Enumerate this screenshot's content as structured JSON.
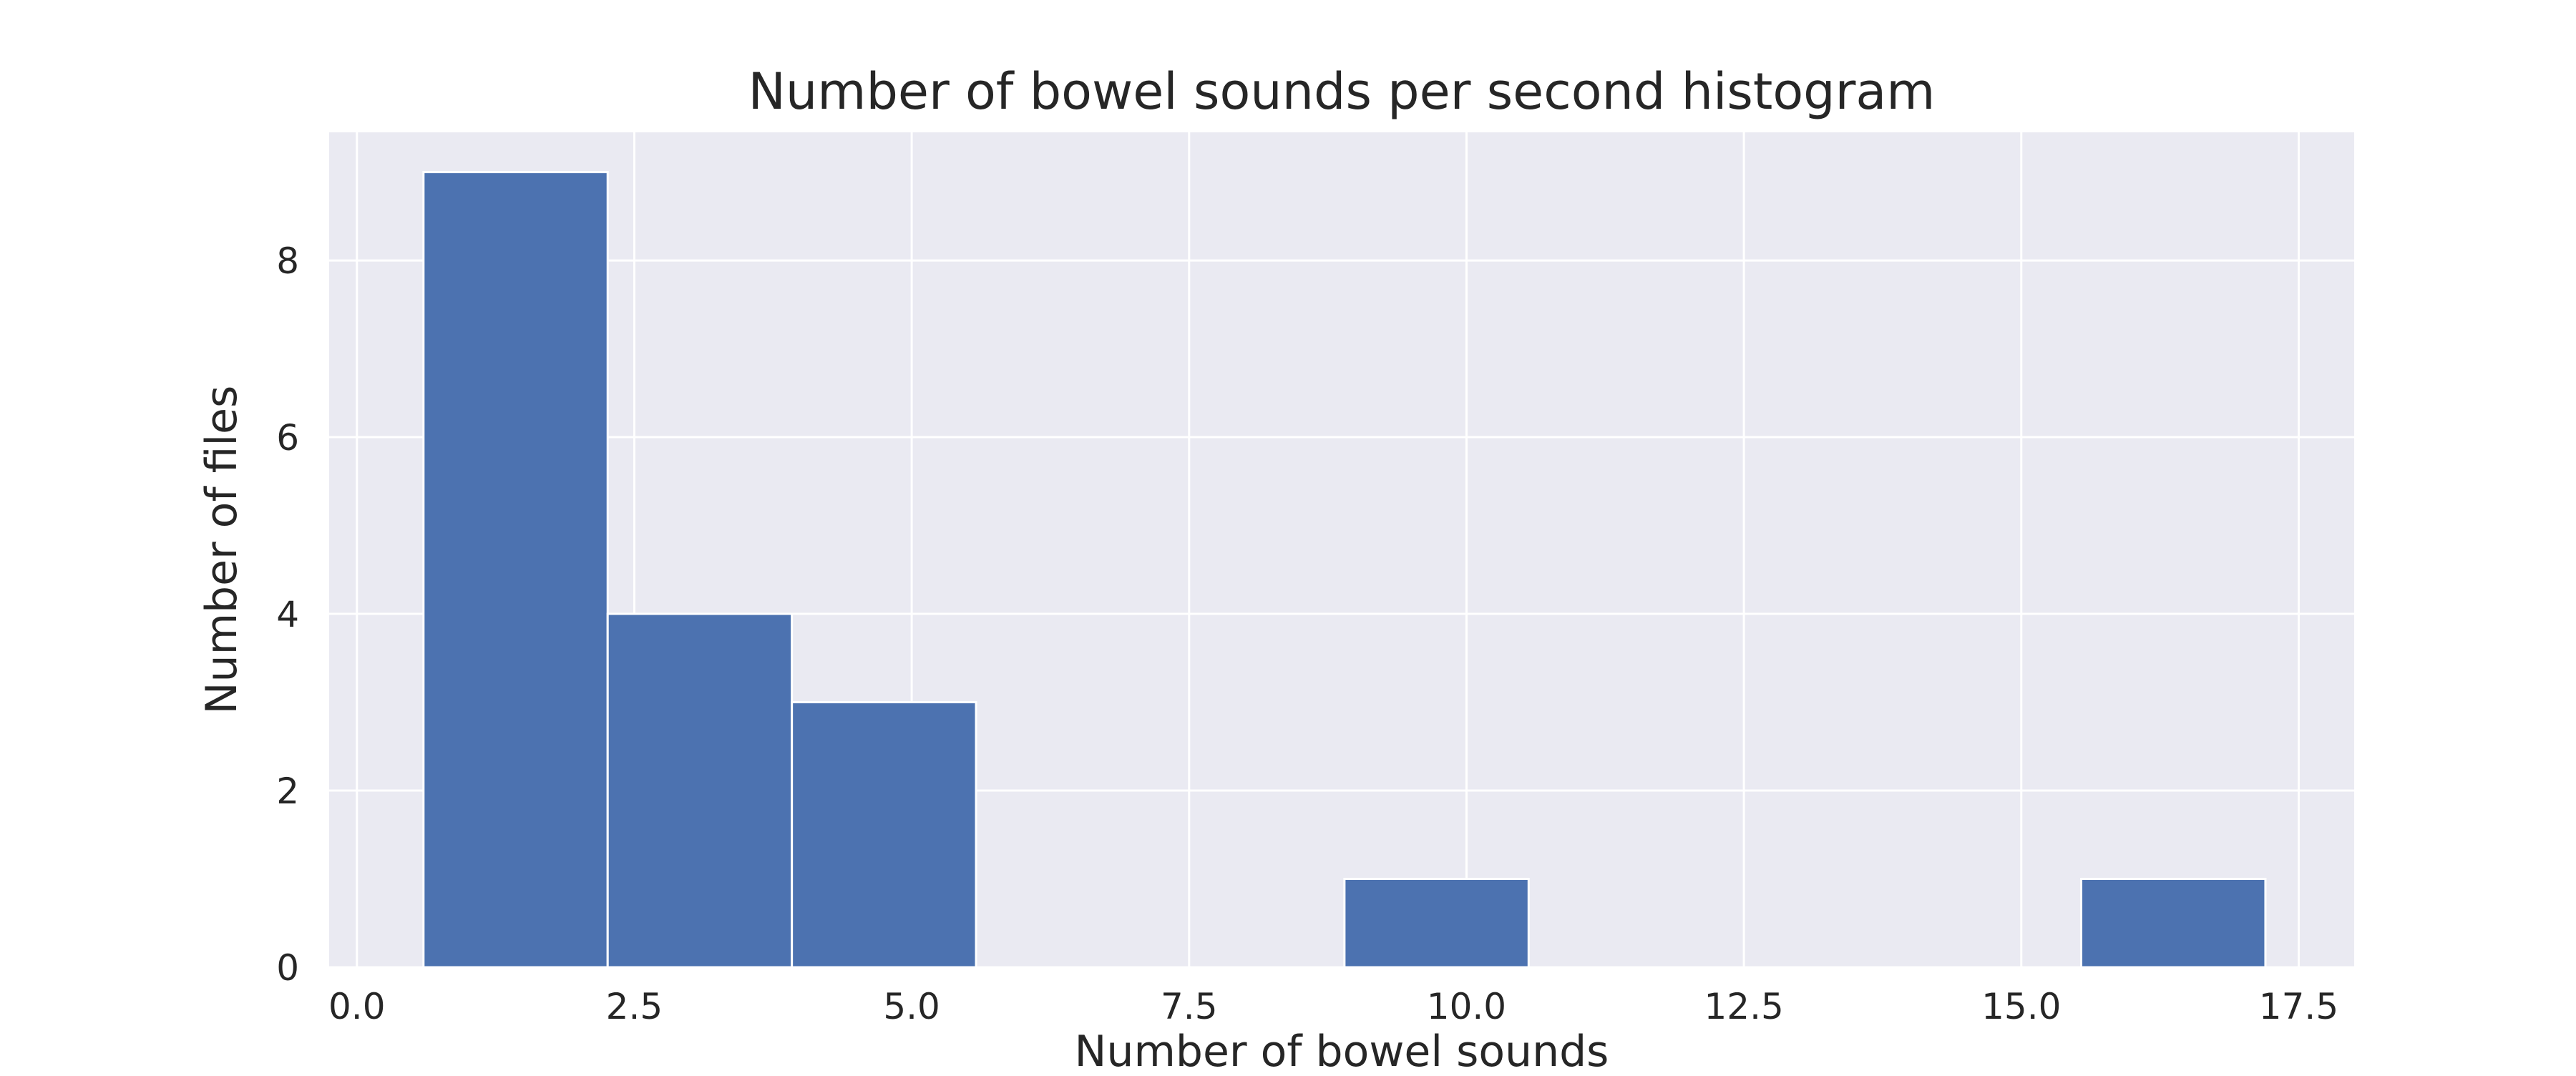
{
  "chart_data": {
    "type": "bar",
    "title": "Number of bowel sounds per second histogram",
    "xlabel": "Number of bowel sounds",
    "ylabel": "Number of files",
    "xlim": [
      -0.25,
      18.0
    ],
    "ylim": [
      0,
      9.45
    ],
    "xticks": [
      0.0,
      2.5,
      5.0,
      7.5,
      10.0,
      12.5,
      15.0,
      17.5
    ],
    "xtick_labels": [
      "0.0",
      "2.5",
      "5.0",
      "7.5",
      "10.0",
      "12.5",
      "15.0",
      "17.5"
    ],
    "yticks": [
      0,
      2,
      4,
      6,
      8
    ],
    "ytick_labels": [
      "0",
      "2",
      "4",
      "6",
      "8"
    ],
    "bin_edges": [
      0.6,
      2.26,
      3.92,
      5.58,
      7.24,
      8.9,
      10.56,
      12.22,
      13.88,
      15.54,
      17.2
    ],
    "counts": [
      9,
      4,
      3,
      0,
      0,
      1,
      0,
      0,
      0,
      1
    ],
    "grid": true,
    "legend": "none",
    "colors": {
      "bar": "#4c72b0",
      "plot_background": "#eaeaf2",
      "grid": "#ffffff"
    }
  }
}
